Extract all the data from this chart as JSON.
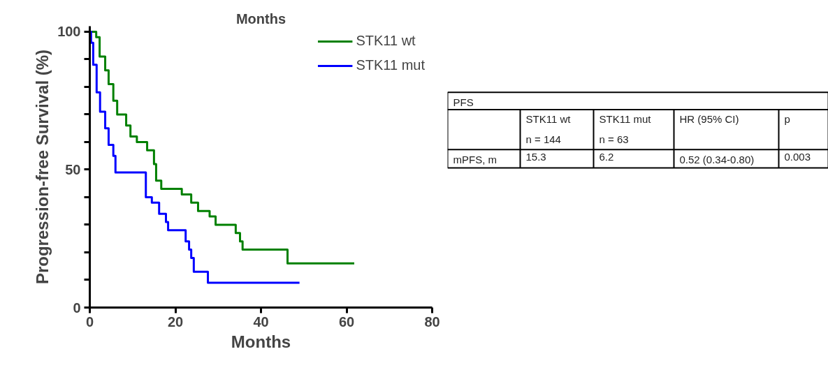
{
  "chart_data": {
    "type": "step",
    "title": "Months",
    "xlabel": "Months",
    "ylabel": "Progression-free Survival (%)",
    "xlim": [
      0,
      80
    ],
    "ylim": [
      0,
      102
    ],
    "xticks": [
      0,
      20,
      40,
      60,
      80
    ],
    "yticks": [
      0,
      {
        "value": 10,
        "label": null
      },
      {
        "value": 20,
        "label": null
      },
      {
        "value": 30,
        "label": null
      },
      {
        "value": 40,
        "label": null
      },
      50,
      {
        "value": 60,
        "label": null
      },
      {
        "value": 70,
        "label": null
      },
      {
        "value": 80,
        "label": null
      },
      {
        "value": 90,
        "label": null
      },
      100
    ],
    "grid": false,
    "legend": "top right",
    "series": [
      {
        "name": "STK11 wt",
        "color": "#008000",
        "x": [
          0,
          1.5,
          2.3,
          3.6,
          4.4,
          5.5,
          6.4,
          8.5,
          9.5,
          11,
          13.4,
          15,
          15.5,
          16.7,
          21.5,
          23.7,
          25.3,
          28,
          29.4,
          34.1,
          35.1,
          35.7,
          46.2,
          61.8
        ],
        "values": [
          100,
          98,
          91,
          86,
          81,
          75,
          70,
          66,
          62,
          60,
          57,
          52,
          46,
          43,
          41,
          38,
          35,
          33,
          30,
          27,
          24,
          21,
          16,
          16
        ]
      },
      {
        "name": "STK11 mut",
        "color": "#0000ff",
        "x": [
          0,
          0.3,
          0.8,
          1.6,
          2.4,
          3.6,
          4.4,
          5.5,
          6,
          13.1,
          14.5,
          16.2,
          17.8,
          18.3,
          22.4,
          23.2,
          23.7,
          24.3,
          27.6,
          49
        ],
        "values": [
          100,
          96,
          88,
          78,
          71,
          65,
          59,
          55,
          49,
          40,
          38,
          34,
          31,
          28,
          24,
          21,
          18,
          13,
          9,
          9
        ]
      }
    ],
    "annotations": [
      "PFS",
      "STK11 wt\nn = 144",
      "STK11 mut\nn = 63",
      "HR (95% CI)",
      "p",
      "mPFS, m",
      "15.3",
      "6.2",
      "0.52 (0.34-0.80)",
      "0.003"
    ]
  }
}
